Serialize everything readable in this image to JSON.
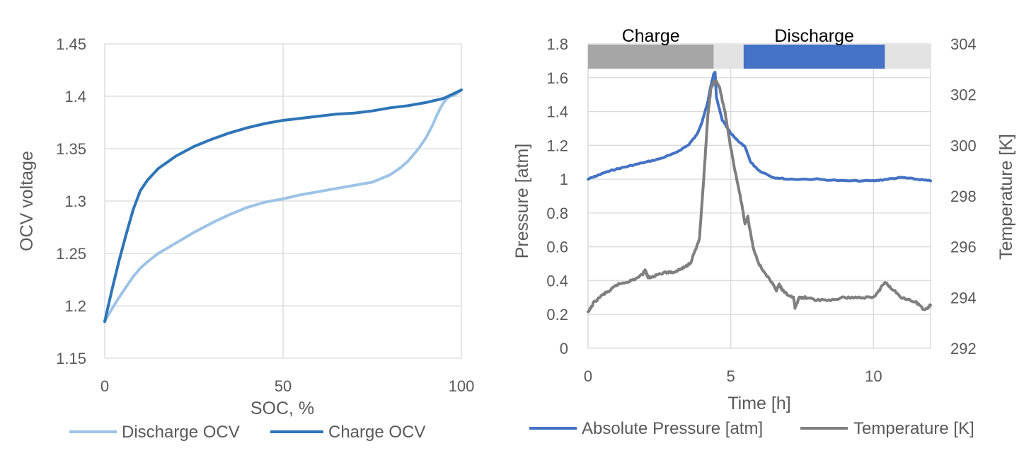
{
  "chart_data": [
    {
      "type": "line",
      "xlabel": "SOC, %",
      "ylabel": "OCV voltage",
      "xlim": [
        0,
        100
      ],
      "ylim": [
        1.15,
        1.45
      ],
      "x_ticks": [
        "0",
        "50",
        "100"
      ],
      "y_ticks": [
        "1.15",
        "1.2",
        "1.25",
        "1.3",
        "1.35",
        "1.4",
        "1.45"
      ],
      "grid": true,
      "legend_position": "bottom",
      "series": [
        {
          "name": "Discharge OCV",
          "color": "#9DC3E6",
          "x": [
            0,
            2,
            4,
            6,
            8,
            10,
            12,
            15,
            20,
            25,
            30,
            35,
            40,
            45,
            50,
            55,
            60,
            65,
            70,
            75,
            80,
            83,
            85,
            88,
            90,
            92,
            93,
            94,
            95,
            96,
            97,
            98,
            100
          ],
          "y": [
            1.185,
            1.197,
            1.208,
            1.218,
            1.228,
            1.236,
            1.242,
            1.25,
            1.26,
            1.27,
            1.279,
            1.287,
            1.294,
            1.299,
            1.302,
            1.306,
            1.309,
            1.312,
            1.315,
            1.318,
            1.325,
            1.332,
            1.338,
            1.35,
            1.36,
            1.373,
            1.381,
            1.388,
            1.394,
            1.398,
            1.4,
            1.401,
            1.406
          ]
        },
        {
          "name": "Charge OCV",
          "color": "#2E75B6",
          "x": [
            0,
            2,
            4,
            6,
            8,
            10,
            12,
            15,
            20,
            25,
            30,
            35,
            40,
            45,
            50,
            55,
            60,
            65,
            70,
            75,
            80,
            85,
            90,
            95,
            100
          ],
          "y": [
            1.185,
            1.215,
            1.243,
            1.268,
            1.292,
            1.31,
            1.32,
            1.331,
            1.343,
            1.352,
            1.359,
            1.365,
            1.37,
            1.374,
            1.377,
            1.379,
            1.381,
            1.383,
            1.384,
            1.386,
            1.389,
            1.391,
            1.394,
            1.398,
            1.406
          ]
        }
      ]
    },
    {
      "type": "line",
      "xlabel": "Time [h]",
      "ylabel": "Pressure [atm]",
      "y2label": "Temperature [K]",
      "xlim": [
        0,
        12
      ],
      "ylim": [
        0,
        1.8
      ],
      "y2lim": [
        292,
        304
      ],
      "x_ticks": [
        "0",
        "5",
        "10"
      ],
      "y_ticks": [
        "0",
        "0.2",
        "0.4",
        "0.6",
        "0.8",
        "1",
        "1.2",
        "1.4",
        "1.6",
        "1.8"
      ],
      "y2_ticks": [
        "292",
        "294",
        "296",
        "298",
        "300",
        "302",
        "304"
      ],
      "grid": true,
      "legend_position": "bottom",
      "bands": [
        {
          "label": "Charge",
          "start": 0,
          "end": 4.4,
          "color": "#A6A6A6"
        },
        {
          "label": "",
          "start": 4.4,
          "end": 5.45,
          "color": "#E3E3E3"
        },
        {
          "label": "Discharge",
          "start": 5.45,
          "end": 10.4,
          "color": "#4472C4"
        },
        {
          "label": "",
          "start": 10.4,
          "end": 12,
          "color": "#E3E3E3"
        }
      ],
      "series": [
        {
          "name": "Absolute Pressure [atm]",
          "axis": "left",
          "color": "#4472C4",
          "x": [
            0,
            0.3,
            0.6,
            1,
            1.5,
            2,
            2.5,
            3,
            3.5,
            3.8,
            4.0,
            4.2,
            4.3,
            4.4,
            4.45,
            4.5,
            4.7,
            5.0,
            5.3,
            5.5,
            5.7,
            6.0,
            6.5,
            7,
            8,
            9,
            10,
            10.5,
            11,
            11.5,
            12
          ],
          "y": [
            1.0,
            1.02,
            1.04,
            1.06,
            1.08,
            1.1,
            1.12,
            1.15,
            1.2,
            1.26,
            1.34,
            1.46,
            1.55,
            1.62,
            1.63,
            1.48,
            1.35,
            1.27,
            1.22,
            1.19,
            1.1,
            1.05,
            1.01,
            1.0,
            1.0,
            0.99,
            0.99,
            1.0,
            1.01,
            1.0,
            0.99
          ]
        },
        {
          "name": "Temperature [K]",
          "axis": "right",
          "color": "#7F7F7F",
          "x": [
            0,
            0.2,
            0.5,
            0.8,
            1.0,
            1.3,
            1.6,
            1.9,
            2.0,
            2.1,
            2.2,
            2.4,
            2.8,
            3.0,
            3.2,
            3.4,
            3.6,
            3.9,
            4.0,
            4.1,
            4.2,
            4.3,
            4.4,
            4.5,
            4.6,
            4.8,
            5.0,
            5.2,
            5.4,
            5.5,
            5.6,
            5.65,
            5.8,
            6.0,
            6.3,
            6.6,
            6.7,
            6.8,
            7.0,
            7.2,
            7.25,
            7.4,
            7.6,
            8.0,
            8.5,
            9.0,
            9.5,
            10.0,
            10.2,
            10.4,
            10.6,
            11.0,
            11.5,
            11.8,
            12
          ],
          "y": [
            293.4,
            293.8,
            294.1,
            294.3,
            294.5,
            294.6,
            294.7,
            294.9,
            295.1,
            294.8,
            294.8,
            294.9,
            295.0,
            295.0,
            295.1,
            295.2,
            295.4,
            296.3,
            297.8,
            299.5,
            301.2,
            302.2,
            302.5,
            302.5,
            302.3,
            301.3,
            299.9,
            298.7,
            297.6,
            296.9,
            297.2,
            296.8,
            295.9,
            295.3,
            294.8,
            294.3,
            294.5,
            294.3,
            294.1,
            294.0,
            293.6,
            294.0,
            294.0,
            293.9,
            293.9,
            294.0,
            294.0,
            294.0,
            294.3,
            294.6,
            294.4,
            294.0,
            293.8,
            293.5,
            293.7
          ]
        }
      ]
    }
  ]
}
